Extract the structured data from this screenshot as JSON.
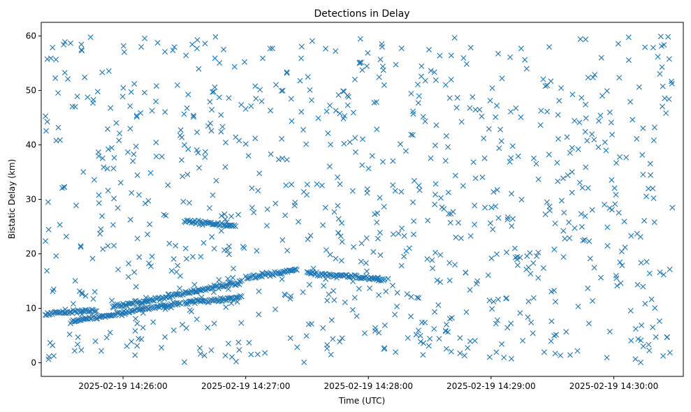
{
  "chart_data": {
    "type": "scatter",
    "title": "Detections in Delay",
    "xlabel": "Time (UTC)",
    "ylabel": "Bistatic Delay (km)",
    "x_ticks": [
      "2025-02-19 14:26:00",
      "2025-02-19 14:27:00",
      "2025-02-19 14:28:00",
      "2025-02-19 14:29:00",
      "2025-02-19 14:30:00"
    ],
    "y_ticks": [
      0,
      10,
      20,
      30,
      40,
      50,
      60
    ],
    "xlim": [
      "2025-02-19 14:25:20",
      "2025-02-19 14:30:34"
    ],
    "ylim": [
      -2.5,
      62.5
    ],
    "marker": "x",
    "color": "#1f77b4",
    "grid": false,
    "notes": "Dense random background of detections between 0 and 60 km across the whole time span; structured tracks listed below.",
    "tracks": [
      {
        "start": [
          "2025-02-19 14:25:22",
          9.0
        ],
        "end": [
          "2025-02-19 14:25:47",
          9.7
        ]
      },
      {
        "start": [
          "2025-02-19 14:25:35",
          7.5
        ],
        "end": [
          "2025-02-19 14:26:28",
          11.0
        ]
      },
      {
        "start": [
          "2025-02-19 14:25:55",
          10.2
        ],
        "end": [
          "2025-02-19 14:26:58",
          14.8
        ]
      },
      {
        "start": [
          "2025-02-19 14:26:30",
          11.0
        ],
        "end": [
          "2025-02-19 14:26:58",
          12.0
        ]
      },
      {
        "start": [
          "2025-02-19 14:26:30",
          26.0
        ],
        "end": [
          "2025-02-19 14:26:55",
          25.2
        ]
      },
      {
        "start": [
          "2025-02-19 14:27:00",
          15.5
        ],
        "end": [
          "2025-02-19 14:27:25",
          17.0
        ]
      },
      {
        "start": [
          "2025-02-19 14:27:30",
          16.5
        ],
        "end": [
          "2025-02-19 14:28:08",
          15.2
        ]
      }
    ],
    "background_count": 900,
    "background_y_range": [
      0,
      60
    ]
  }
}
